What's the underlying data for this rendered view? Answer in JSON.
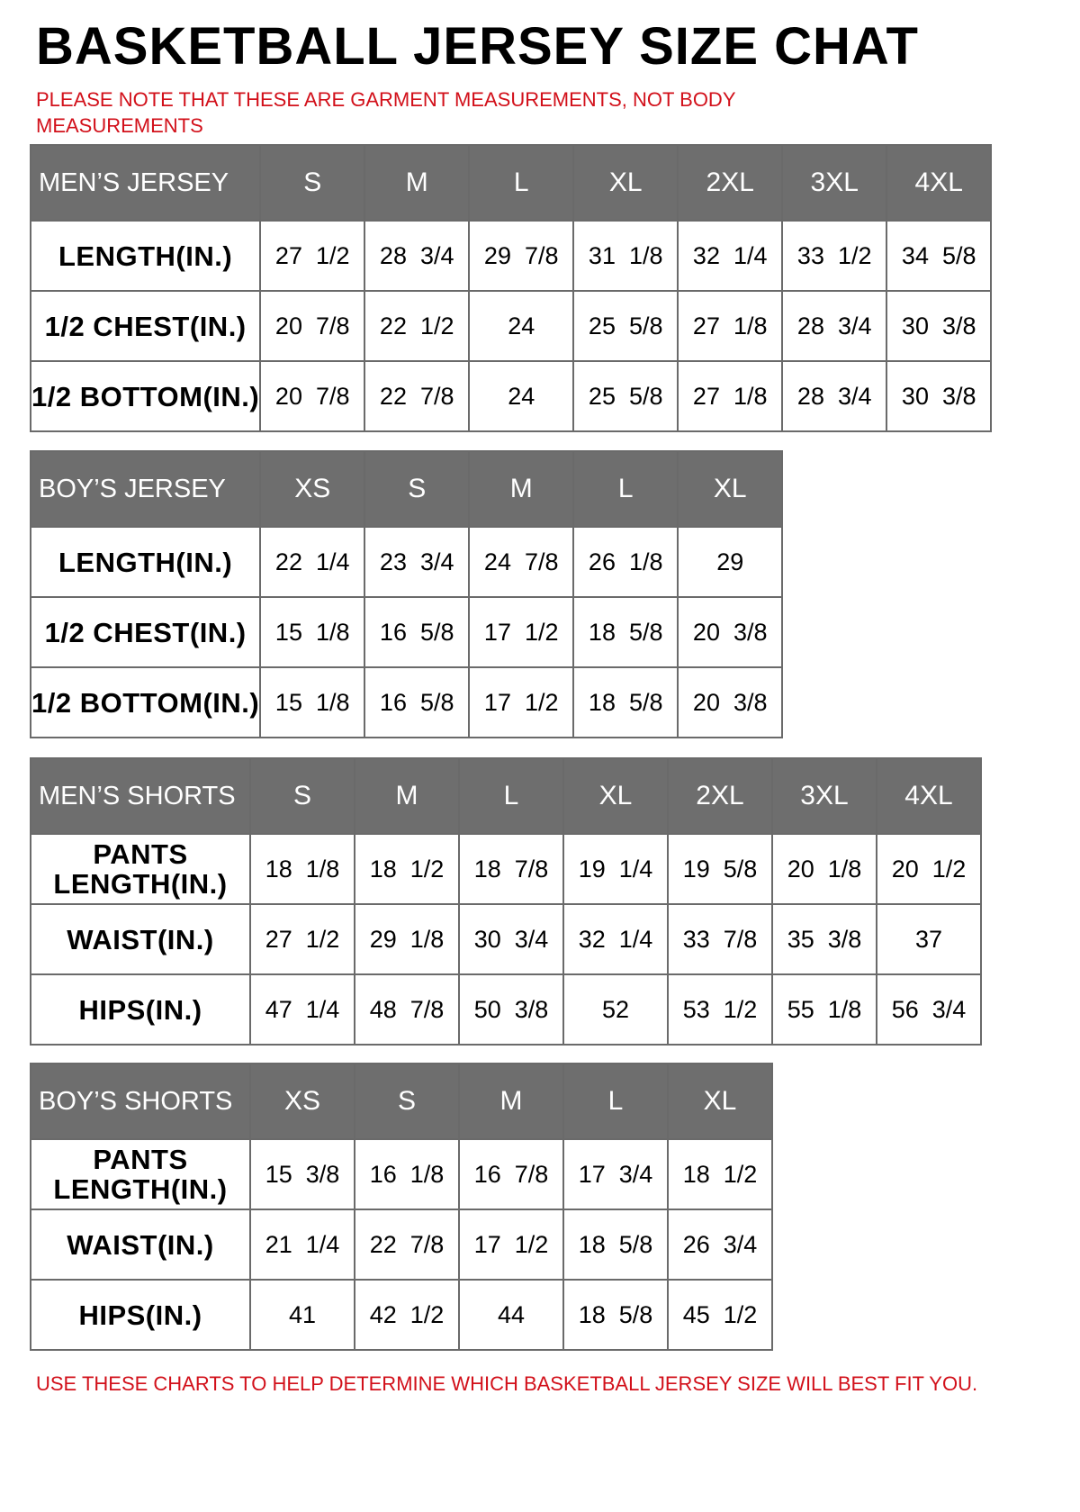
{
  "title": "BASKETBALL JERSEY SIZE CHAT",
  "note": "PLEASE NOTE THAT THESE ARE GARMENT MEASUREMENTS, NOT BODY MEASUREMENTS",
  "footer": "USE THESE CHARTS TO HELP DETERMINE WHICH BASKETBALL JERSEY SIZE WILL BEST FIT YOU.",
  "colors": {
    "header_bg": "#6e6e6e",
    "note_red": "#d2101a"
  },
  "tables": [
    {
      "header": "MEN’S JERSEY",
      "sizes": [
        "S",
        "M",
        "L",
        "XL",
        "2XL",
        "3XL",
        "4XL"
      ],
      "rows": [
        {
          "label": "LENGTH(IN.)",
          "values": [
            "27  1/2",
            "28  3/4",
            "29  7/8",
            "31  1/8",
            "32  1/4",
            "33  1/2",
            "34  5/8"
          ]
        },
        {
          "label": "1/2  CHEST(IN.)",
          "values": [
            "20  7/8",
            "22  1/2",
            "24",
            "25  5/8",
            "27  1/8",
            "28  3/4",
            "30  3/8"
          ]
        },
        {
          "label": "1/2  BOTTOM(IN.)",
          "values": [
            "20  7/8",
            "22  7/8",
            "24",
            "25  5/8",
            "27  1/8",
            "28  3/4",
            "30  3/8"
          ]
        }
      ]
    },
    {
      "header": "BOY’S JERSEY",
      "sizes": [
        "XS",
        "S",
        "M",
        "L",
        "XL"
      ],
      "rows": [
        {
          "label": "LENGTH(IN.)",
          "values": [
            "22  1/4",
            "23  3/4",
            "24  7/8",
            "26  1/8",
            "29"
          ]
        },
        {
          "label": "1/2  CHEST(IN.)",
          "values": [
            "15  1/8",
            "16  5/8",
            "17  1/2",
            "18  5/8",
            "20  3/8"
          ]
        },
        {
          "label": "1/2  BOTTOM(IN.)",
          "values": [
            "15  1/8",
            "16  5/8",
            "17  1/2",
            "18  5/8",
            "20  3/8"
          ]
        }
      ]
    },
    {
      "header": "MEN’S SHORTS",
      "sizes": [
        "S",
        "M",
        "L",
        "XL",
        "2XL",
        "3XL",
        "4XL"
      ],
      "rows": [
        {
          "label": "PANTS LENGTH(IN.)",
          "values": [
            "18  1/8",
            "18  1/2",
            "18  7/8",
            "19  1/4",
            "19  5/8",
            "20  1/8",
            "20  1/2"
          ]
        },
        {
          "label": "WAIST(IN.)",
          "values": [
            "27  1/2",
            "29  1/8",
            "30  3/4",
            "32  1/4",
            "33  7/8",
            "35  3/8",
            "37"
          ]
        },
        {
          "label": "HIPS(IN.)",
          "values": [
            "47  1/4",
            "48  7/8",
            "50  3/8",
            "52",
            "53  1/2",
            "55  1/8",
            "56  3/4"
          ]
        }
      ]
    },
    {
      "header": "BOY’S SHORTS",
      "sizes": [
        "XS",
        "S",
        "M",
        "L",
        "XL"
      ],
      "rows": [
        {
          "label": "PANTS LENGTH(IN.)",
          "values": [
            "15  3/8",
            "16  1/8",
            "16  7/8",
            "17  3/4",
            "18  1/2"
          ]
        },
        {
          "label": "WAIST(IN.)",
          "values": [
            "21  1/4",
            "22  7/8",
            "17  1/2",
            "18  5/8",
            "26  3/4"
          ]
        },
        {
          "label": "HIPS(IN.)",
          "values": [
            "41",
            "42  1/2",
            "44",
            "18  5/8",
            "45  1/2"
          ]
        }
      ]
    }
  ]
}
